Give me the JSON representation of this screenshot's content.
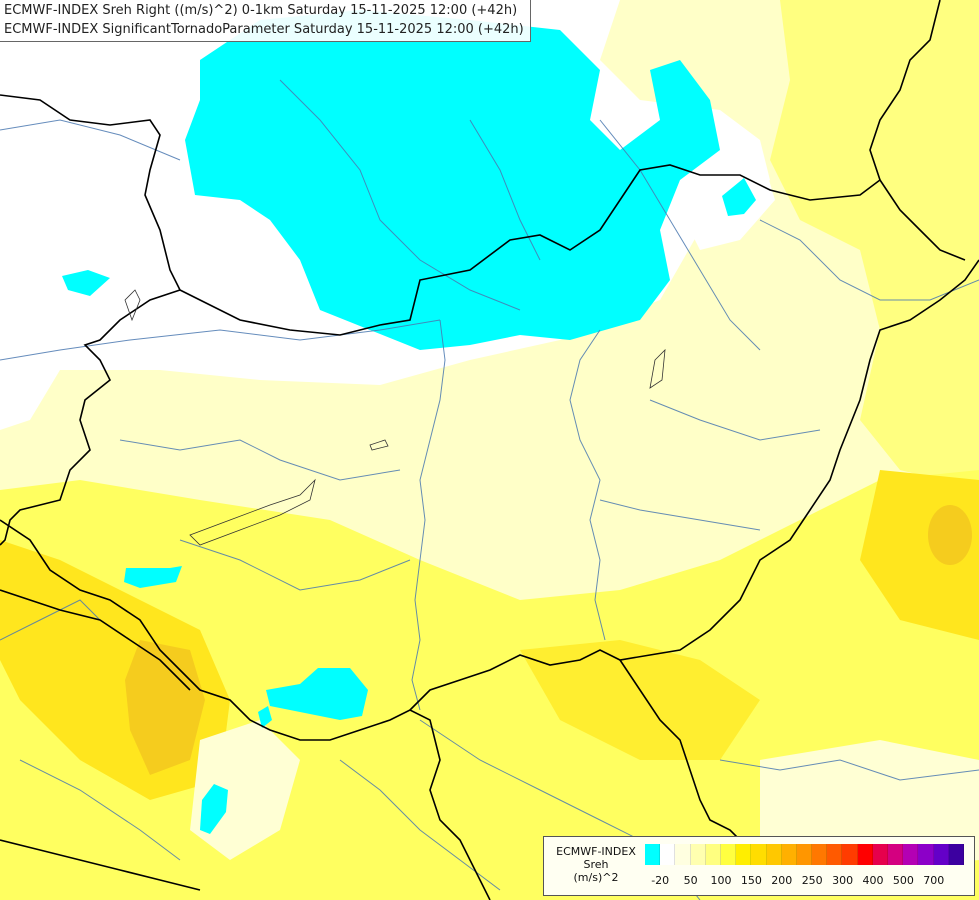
{
  "title": {
    "line1": "ECMWF-INDEX Sreh Right ((m/s)^2) 0-1km Saturday 15-11-2025 12:00 (+42h)",
    "line2": "ECMWF-INDEX SignificantTornadoParameter Saturday 15-11-2025 12:00 (+42h)"
  },
  "legend": {
    "name": "ECMWF-INDEX",
    "variable": "Sreh",
    "unit": "(m/s)^2",
    "colors": [
      "#00ffff",
      "#ffffff",
      "#ffffe0",
      "#ffffb0",
      "#ffff80",
      "#ffff40",
      "#ffee00",
      "#ffdd00",
      "#ffc800",
      "#ffb000",
      "#ff9600",
      "#ff7800",
      "#ff5a00",
      "#ff3c00",
      "#ff0000",
      "#e6004c",
      "#d40080",
      "#b400b4",
      "#8c00c8",
      "#6400c8",
      "#3c00a0"
    ],
    "ticks": [
      "-20",
      "50",
      "100",
      "150",
      "200",
      "250",
      "300",
      "400",
      "500",
      "700"
    ]
  },
  "map_colors": {
    "background": "#ffffc8",
    "cyan": "#00ffff",
    "white": "#ffffff",
    "yellow": "#ffff50",
    "deep_yellow": "#ffe61e",
    "orange": "#f5cc1e",
    "border": "#000000",
    "river": "#4a78b0"
  }
}
